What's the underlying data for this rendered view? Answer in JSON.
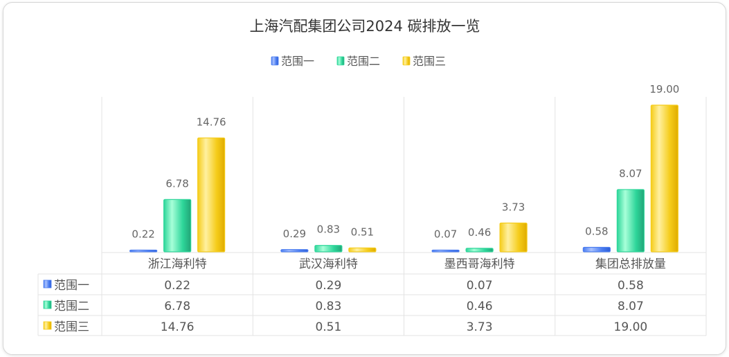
{
  "chart_data": {
    "type": "bar",
    "title": "上海汽配集团公司2024 碳排放一览",
    "categories": [
      "浙江海利特",
      "武汉海利特",
      "墨西哥海利特",
      "集团总排放量"
    ],
    "series": [
      {
        "name": "范围一",
        "values": [
          0.22,
          0.29,
          0.07,
          0.58
        ],
        "labels": [
          "0.22",
          "0.29",
          "0.07",
          "0.58"
        ],
        "color": "#4a7cf0",
        "light": "#a9c2ff",
        "dark": "#2f5fd6"
      },
      {
        "name": "范围二",
        "values": [
          6.78,
          0.83,
          0.46,
          8.07
        ],
        "labels": [
          "6.78",
          "0.83",
          "0.46",
          "8.07"
        ],
        "color": "#2ed69a",
        "light": "#a8ffd9",
        "dark": "#22a577"
      },
      {
        "name": "范围三",
        "values": [
          14.76,
          0.51,
          3.73,
          19.0
        ],
        "labels": [
          "14.76",
          "0.51",
          "3.73",
          "19.00"
        ],
        "color": "#f5cc1a",
        "light": "#fff0a0",
        "dark": "#e0ac00"
      }
    ],
    "ylim": [
      0,
      19
    ],
    "grid": false,
    "legend": "top-center",
    "data_table": true
  }
}
